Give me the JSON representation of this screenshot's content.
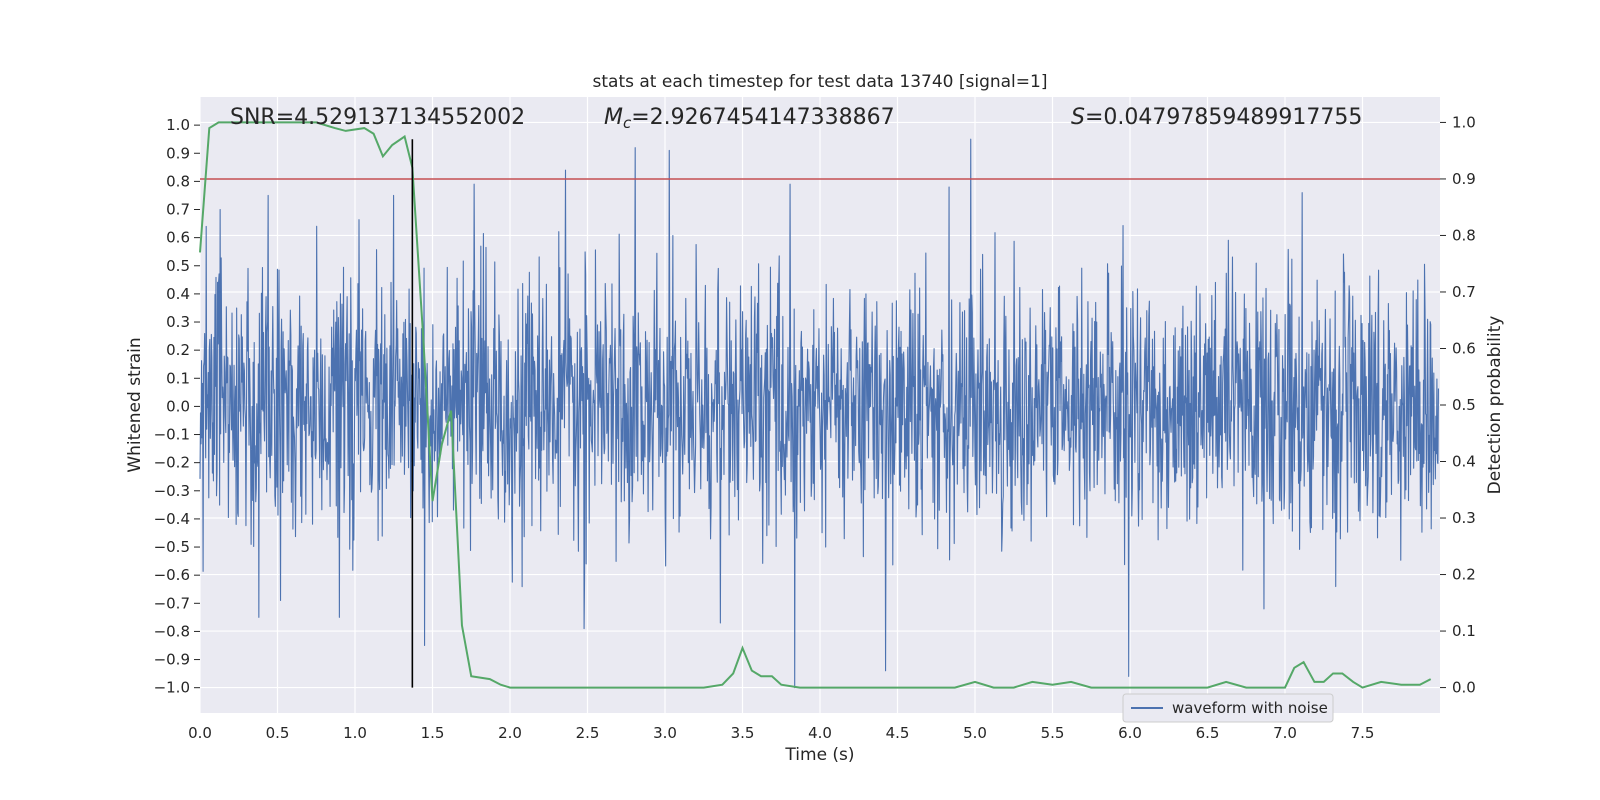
{
  "chart_data": {
    "type": "line",
    "title": "stats at each timestep for test data 13740 [signal=1]",
    "xlabel": "Time (s)",
    "ylabel": "Whitened strain",
    "ylabel_right": "Detection probability",
    "xlim": [
      0.0,
      8.0
    ],
    "ylim": [
      -1.09,
      1.1
    ],
    "ylim_right": [
      -0.045,
      1.045
    ],
    "x_ticks": [
      "0.0",
      "0.5",
      "1.0",
      "1.5",
      "2.0",
      "2.5",
      "3.0",
      "3.5",
      "4.0",
      "4.5",
      "5.0",
      "5.5",
      "6.0",
      "6.5",
      "7.0",
      "7.5"
    ],
    "y_ticks": [
      "1.0",
      "0.9",
      "0.8",
      "0.7",
      "0.6",
      "0.5",
      "0.4",
      "0.3",
      "0.2",
      "0.1",
      "0.0",
      "-0.1",
      "-0.2",
      "-0.3",
      "-0.4",
      "-0.5",
      "-0.6",
      "-0.7",
      "-0.8",
      "-0.9",
      "-1.0"
    ],
    "y_ticks_right": [
      "1.0",
      "0.9",
      "0.8",
      "0.7",
      "0.6",
      "0.5",
      "0.4",
      "0.3",
      "0.2",
      "0.1",
      "0.0"
    ],
    "annotations": {
      "snr": "SNR=4.529137134552002",
      "mc_label": "M",
      "mc_sub": "c",
      "mc_value": "=2.9267454147338867",
      "s_label": "S",
      "s_value": "=0.04797859489917755"
    },
    "legend": {
      "label": "waveform with noise",
      "position": "bottom-right"
    },
    "vertical_marker_x": 1.37,
    "threshold_probability": 0.9,
    "series": [
      {
        "name": "waveform with noise",
        "color": "#4c72b0",
        "axis": "left",
        "description": "noisy whitened strain, approx range -1.0 to 0.95",
        "spikes": [
          {
            "x": 0.04,
            "y": 0.64
          },
          {
            "x": 0.13,
            "y": 0.7
          },
          {
            "x": 0.38,
            "y": -0.75
          },
          {
            "x": 0.44,
            "y": 0.75
          },
          {
            "x": 0.52,
            "y": -0.69
          },
          {
            "x": 0.9,
            "y": -0.75
          },
          {
            "x": 1.25,
            "y": 0.75
          },
          {
            "x": 1.45,
            "y": -0.85
          },
          {
            "x": 1.77,
            "y": 0.79
          },
          {
            "x": 2.36,
            "y": 0.84
          },
          {
            "x": 2.48,
            "y": -0.79
          },
          {
            "x": 2.81,
            "y": 0.92
          },
          {
            "x": 3.03,
            "y": 0.91
          },
          {
            "x": 3.36,
            "y": -0.77
          },
          {
            "x": 3.81,
            "y": 0.79
          },
          {
            "x": 3.84,
            "y": -1.0
          },
          {
            "x": 4.43,
            "y": -0.94
          },
          {
            "x": 4.84,
            "y": 0.78
          },
          {
            "x": 4.98,
            "y": 0.95
          },
          {
            "x": 6.0,
            "y": -0.96
          },
          {
            "x": 7.12,
            "y": 0.76
          }
        ]
      },
      {
        "name": "detection probability",
        "color": "#55a868",
        "axis": "right",
        "x": [
          0.0,
          0.06,
          0.12,
          0.25,
          0.5,
          0.75,
          0.87,
          0.94,
          1.06,
          1.12,
          1.18,
          1.24,
          1.32,
          1.37,
          1.44,
          1.5,
          1.56,
          1.62,
          1.69,
          1.75,
          1.87,
          1.94,
          2.0,
          2.25,
          2.5,
          2.75,
          3.0,
          3.25,
          3.37,
          3.44,
          3.5,
          3.56,
          3.62,
          3.69,
          3.75,
          3.87,
          4.0,
          4.25,
          4.5,
          4.75,
          4.87,
          5.0,
          5.12,
          5.25,
          5.37,
          5.5,
          5.62,
          5.75,
          6.0,
          6.25,
          6.5,
          6.62,
          6.75,
          6.87,
          7.0,
          7.06,
          7.12,
          7.19,
          7.25,
          7.31,
          7.37,
          7.44,
          7.5,
          7.62,
          7.75,
          7.87,
          7.94
        ],
        "values": [
          0.77,
          0.99,
          1.0,
          1.0,
          1.0,
          1.0,
          0.99,
          0.985,
          0.99,
          0.98,
          0.94,
          0.96,
          0.975,
          0.92,
          0.62,
          0.33,
          0.43,
          0.49,
          0.11,
          0.02,
          0.015,
          0.005,
          0.0,
          0.0,
          0.0,
          0.0,
          0.0,
          0.0,
          0.005,
          0.025,
          0.07,
          0.03,
          0.02,
          0.02,
          0.005,
          0.0,
          0.0,
          0.0,
          0.0,
          0.0,
          0.0,
          0.01,
          0.0,
          0.0,
          0.01,
          0.005,
          0.01,
          0.0,
          0.0,
          0.0,
          0.0,
          0.01,
          0.0,
          0.0,
          0.0,
          0.035,
          0.045,
          0.01,
          0.01,
          0.025,
          0.025,
          0.01,
          0.0,
          0.01,
          0.005,
          0.005,
          0.015
        ]
      }
    ]
  }
}
